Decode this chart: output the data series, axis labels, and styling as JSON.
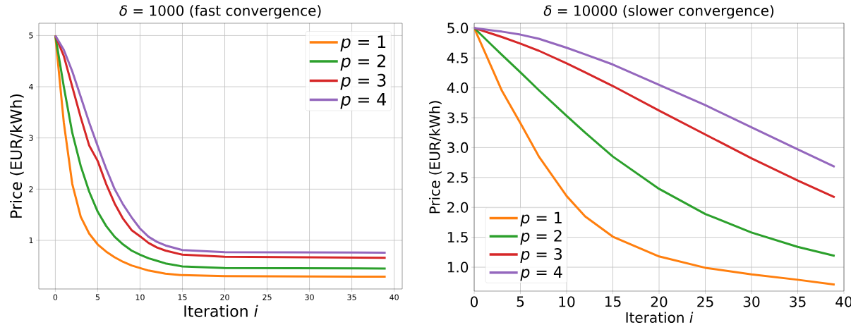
{
  "chart_data": [
    {
      "type": "line",
      "title": "*δ* = 1000 (fast convergence)",
      "xlabel": "Iteration *i*",
      "ylabel": "Price (EUR/kWh)",
      "xlim": [
        -1.95,
        40.95
      ],
      "ylim": [
        0.05,
        5.24
      ],
      "xticks": [
        0,
        5,
        10,
        15,
        20,
        25,
        30,
        35,
        40
      ],
      "yticks": [
        1,
        2,
        3,
        4,
        5
      ],
      "grid": true,
      "legend": "top right",
      "marker": "none",
      "line_style": "solid",
      "x": [
        0,
        1,
        2,
        3,
        4,
        5,
        6,
        7,
        8,
        9,
        10,
        11,
        12,
        13,
        15,
        20,
        39
      ],
      "series": [
        {
          "name": "*p* = 1",
          "color": "#ff7f0e",
          "values": [
            5,
            3.3,
            2.1,
            1.46,
            1.13,
            0.92,
            0.78,
            0.67,
            0.58,
            0.51,
            0.46,
            0.41,
            0.38,
            0.35,
            0.32,
            0.3,
            0.29
          ]
        },
        {
          "name": "*p* = 2",
          "color": "#2ca02c",
          "values": [
            5,
            4.0,
            3.1,
            2.45,
            1.95,
            1.56,
            1.28,
            1.07,
            0.92,
            0.8,
            0.72,
            0.65,
            0.6,
            0.55,
            0.49,
            0.46,
            0.45
          ]
        },
        {
          "name": "*p* = 3",
          "color": "#d62728",
          "values": [
            5,
            4.6,
            4.0,
            3.4,
            2.85,
            2.55,
            2.1,
            1.72,
            1.42,
            1.2,
            1.08,
            0.95,
            0.86,
            0.8,
            0.72,
            0.68,
            0.66
          ]
        },
        {
          "name": "*p* = 4",
          "color": "#9467bd",
          "values": [
            5,
            4.72,
            4.3,
            3.8,
            3.3,
            2.84,
            2.4,
            2.0,
            1.7,
            1.45,
            1.23,
            1.07,
            0.97,
            0.9,
            0.81,
            0.77,
            0.76
          ]
        }
      ]
    },
    {
      "type": "line",
      "title": "*δ* = 10000 (slower convergence)",
      "xlabel": "Iteration *i*",
      "ylabel": "Price (EUR/kWh)",
      "xlim": [
        0,
        40
      ],
      "ylim": [
        0.6,
        5.08
      ],
      "xticks": [
        0,
        5,
        10,
        15,
        20,
        25,
        30,
        35,
        40
      ],
      "yticks": [
        {
          "value": 1,
          "label": "1.0"
        },
        {
          "value": 1.5,
          "label": "1.5"
        },
        {
          "value": 2,
          "label": "2.0"
        },
        {
          "value": 2.5,
          "label": "2.5"
        },
        {
          "value": 3,
          "label": "3.0"
        },
        {
          "value": 3.5,
          "label": "3.5"
        },
        {
          "value": 4,
          "label": "4.0"
        },
        {
          "value": 4.5,
          "label": "4.5"
        },
        {
          "value": 5,
          "label": "5.0"
        }
      ],
      "grid": true,
      "legend": "bottom left",
      "marker": "none",
      "line_style": "solid",
      "x": [
        0,
        2,
        3,
        5,
        7,
        10,
        12,
        15,
        20,
        25,
        30,
        35,
        39
      ],
      "series": [
        {
          "name": "*p* = 1",
          "color": "#ff7f0e",
          "values": [
            5,
            4.3,
            3.95,
            3.41,
            2.85,
            2.19,
            1.85,
            1.51,
            1.18,
            0.99,
            0.88,
            0.79,
            0.71
          ]
        },
        {
          "name": "*p* = 2",
          "color": "#2ca02c",
          "values": [
            5,
            4.7,
            4.55,
            4.26,
            3.96,
            3.53,
            3.25,
            2.85,
            2.31,
            1.89,
            1.58,
            1.34,
            1.19
          ]
        },
        {
          "name": "*p* = 3",
          "color": "#d62728",
          "values": [
            5,
            4.9,
            4.85,
            4.74,
            4.62,
            4.41,
            4.26,
            4.03,
            3.62,
            3.22,
            2.82,
            2.45,
            2.17
          ]
        },
        {
          "name": "*p* = 4",
          "color": "#9467bd",
          "values": [
            5,
            4.96,
            4.94,
            4.89,
            4.82,
            4.67,
            4.56,
            4.39,
            4.05,
            3.71,
            3.34,
            2.97,
            2.68
          ]
        }
      ]
    }
  ]
}
